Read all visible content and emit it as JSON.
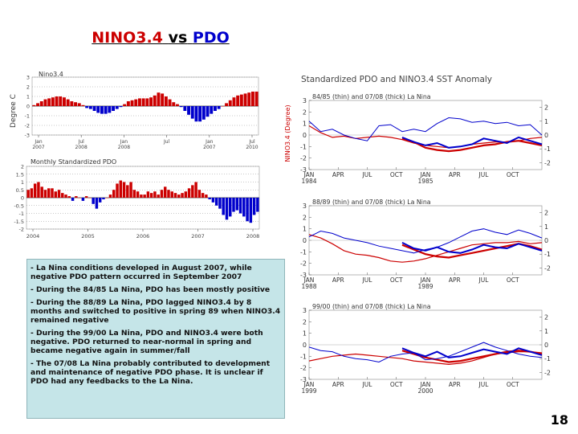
{
  "slide": {
    "title_part1": "NINO3.4",
    "title_part2": "vs",
    "title_part3": "PDO",
    "page_number": "18",
    "colors": {
      "red": "#cc0000",
      "blue": "#0000cc",
      "notes_bg": "#c5e5e8"
    },
    "notes": [
      "- La Nina conditions developed in August 2007, while negative PDO pattern occurred in September 2007",
      "- During the 84/85 La Nina, PDO has been mostly positive",
      "- During the 88/89 La Nina, PDO lagged NINO3.4 by 8 months and switched to positive in spring 89 when NINO3.4 remained negative",
      "- During the 99/00 La Nina, PDO and NINO3.4 were both negative. PDO returned to near-normal in spring and became negative again in summer/fall",
      "- The 07/08 La Nina probably contributed to development and maintenance of negative PDO phase. It is unclear if PDO had any feedbacks to the La Nina."
    ]
  },
  "chart_data": [
    {
      "type": "bar",
      "title": "Nino3.4",
      "ylabel": "Degree C",
      "ylim": [
        -3,
        3
      ],
      "yticks": [
        "3",
        "2",
        "1",
        "0",
        "-1",
        "-2",
        "-3"
      ],
      "xtick_labels": [
        {
          "top": "Jan",
          "bottom": "2007"
        },
        {
          "top": "Jul",
          "bottom": "2008"
        },
        {
          "top": "Jan",
          "bottom": "2008"
        },
        {
          "top": "Jul",
          "bottom": ""
        },
        {
          "top": "Jan",
          "bottom": "2007"
        },
        {
          "top": "Jul",
          "bottom": "2010"
        }
      ],
      "values": [
        0.1,
        0.3,
        0.5,
        0.7,
        0.8,
        0.9,
        1.0,
        1.0,
        0.9,
        0.7,
        0.5,
        0.4,
        0.3,
        0.1,
        -0.2,
        -0.3,
        -0.5,
        -0.7,
        -0.8,
        -0.8,
        -0.7,
        -0.5,
        -0.3,
        -0.1,
        0.2,
        0.5,
        0.6,
        0.7,
        0.8,
        0.8,
        0.8,
        0.9,
        1.1,
        1.4,
        1.3,
        1.0,
        0.7,
        0.4,
        0.2,
        -0.1,
        -0.5,
        -0.9,
        -1.3,
        -1.6,
        -1.6,
        -1.4,
        -1.1,
        -0.8,
        -0.5,
        -0.3,
        0.0,
        0.3,
        0.6,
        0.9,
        1.1,
        1.2,
        1.3,
        1.4,
        1.5,
        1.5
      ]
    },
    {
      "type": "bar",
      "title": "Monthly Standardized PDO",
      "ylim": [
        -2,
        2
      ],
      "yticks": [
        "2",
        "1.5",
        "1",
        "0.5",
        "0",
        "-0.5",
        "-1",
        "-1.5",
        "-2"
      ],
      "xtick_labels": [
        "2004",
        "2005",
        "2006",
        "2007",
        "2008"
      ],
      "values": [
        0.5,
        0.6,
        0.9,
        1.0,
        0.7,
        0.5,
        0.6,
        0.6,
        0.4,
        0.5,
        0.3,
        0.2,
        0.1,
        -0.2,
        0.1,
        0.0,
        -0.2,
        0.1,
        0.0,
        -0.4,
        -0.7,
        -0.3,
        -0.1,
        0.0,
        0.2,
        0.5,
        0.9,
        1.1,
        1.0,
        0.8,
        1.0,
        0.5,
        0.4,
        0.2,
        0.2,
        0.4,
        0.3,
        0.4,
        0.2,
        0.5,
        0.7,
        0.5,
        0.4,
        0.3,
        0.2,
        0.3,
        0.4,
        0.6,
        0.8,
        1.0,
        0.5,
        0.3,
        0.2,
        -0.1,
        -0.3,
        -0.5,
        -0.7,
        -1.1,
        -1.4,
        -1.2,
        -0.9,
        -0.8,
        -1.0,
        -1.2,
        -1.5,
        -1.6,
        -1.1,
        -0.9
      ]
    },
    {
      "type": "line",
      "title": "Standardized PDO and NINO3.4 SST Anomaly",
      "ylabel": "NINO3.4 (Degree)",
      "panels": [
        {
          "caption": "84/85 (thin) and 07/08 (thick) La Nina",
          "ylim": [
            -3,
            3
          ],
          "left_ticks": [
            "3",
            "2",
            "1",
            "0",
            "-1",
            "-2",
            "-3"
          ],
          "right_ticks": [
            "2",
            "1",
            "0",
            "-1",
            "-2"
          ],
          "x_labels": [
            {
              "top": "JAN",
              "bottom": "1984"
            },
            {
              "top": "APR",
              "bottom": ""
            },
            {
              "top": "JUL",
              "bottom": ""
            },
            {
              "top": "OCT",
              "bottom": ""
            },
            {
              "top": "JAN",
              "bottom": "1985"
            },
            {
              "top": "APR",
              "bottom": ""
            },
            {
              "top": "JUL",
              "bottom": ""
            },
            {
              "top": "OCT",
              "bottom": ""
            }
          ],
          "series": [
            {
              "color": "#cc0000",
              "width": 1.2,
              "values": [
                0.8,
                0.2,
                -0.2,
                -0.1,
                -0.3,
                -0.2,
                -0.1,
                -0.2,
                -0.4,
                -0.7,
                -0.9,
                -1.0,
                -1.1,
                -1.0,
                -0.8,
                -0.7,
                -0.6,
                -0.6,
                -0.5,
                -0.3,
                -0.2
              ]
            },
            {
              "color": "#cc0000",
              "width": 2.2,
              "values": [
                null,
                null,
                null,
                null,
                null,
                null,
                null,
                null,
                -0.3,
                -0.6,
                -1.1,
                -1.3,
                -1.4,
                -1.3,
                -1.1,
                -0.9,
                -0.8,
                -0.6,
                -0.5,
                -0.7,
                -0.9
              ]
            },
            {
              "color": "#0000cc",
              "width": 1.0,
              "values": [
                1.2,
                0.3,
                0.5,
                0.0,
                -0.3,
                -0.5,
                0.8,
                0.9,
                0.3,
                0.5,
                0.3,
                1.0,
                1.5,
                1.4,
                1.1,
                1.2,
                1.0,
                1.1,
                0.8,
                0.9,
                0.0
              ]
            },
            {
              "color": "#0000cc",
              "width": 2.0,
              "values": [
                null,
                null,
                null,
                null,
                null,
                null,
                null,
                null,
                -0.2,
                -0.6,
                -0.9,
                -0.7,
                -1.1,
                -1.0,
                -0.8,
                -0.3,
                -0.5,
                -0.7,
                -0.2,
                -0.5,
                -0.8
              ]
            }
          ]
        },
        {
          "caption": "88/89 (thin) and 07/08 (thick) La Nina",
          "ylim": [
            -3,
            3
          ],
          "left_ticks": [
            "3",
            "2",
            "1",
            "0",
            "-1",
            "-2",
            "-3"
          ],
          "right_ticks": [
            "2",
            "1",
            "0",
            "-1",
            "-2"
          ],
          "x_labels": [
            {
              "top": "JAN",
              "bottom": "1988"
            },
            {
              "top": "APR",
              "bottom": ""
            },
            {
              "top": "JUL",
              "bottom": ""
            },
            {
              "top": "OCT",
              "bottom": ""
            },
            {
              "top": "JAN",
              "bottom": "1989"
            },
            {
              "top": "APR",
              "bottom": ""
            },
            {
              "top": "JUL",
              "bottom": ""
            },
            {
              "top": "OCT",
              "bottom": ""
            }
          ],
          "series": [
            {
              "color": "#cc0000",
              "width": 1.2,
              "values": [
                0.5,
                0.2,
                -0.3,
                -0.9,
                -1.2,
                -1.3,
                -1.5,
                -1.8,
                -1.9,
                -1.8,
                -1.6,
                -1.3,
                -1.0,
                -0.7,
                -0.4,
                -0.3,
                -0.2,
                -0.2,
                -0.1,
                -0.3,
                -0.2
              ]
            },
            {
              "color": "#cc0000",
              "width": 2.2,
              "values": [
                null,
                null,
                null,
                null,
                null,
                null,
                null,
                null,
                -0.4,
                -0.8,
                -1.2,
                -1.4,
                -1.5,
                -1.3,
                -1.1,
                -0.9,
                -0.7,
                -0.5,
                -0.3,
                -0.5,
                -0.8
              ]
            },
            {
              "color": "#0000cc",
              "width": 1.0,
              "values": [
                0.3,
                0.8,
                0.6,
                0.2,
                0.0,
                -0.2,
                -0.5,
                -0.7,
                -0.9,
                -1.1,
                -0.8,
                -0.6,
                -0.2,
                0.3,
                0.8,
                1.0,
                0.7,
                0.5,
                0.9,
                0.6,
                0.2
              ]
            },
            {
              "color": "#0000cc",
              "width": 2.0,
              "values": [
                null,
                null,
                null,
                null,
                null,
                null,
                null,
                null,
                -0.2,
                -0.7,
                -0.9,
                -0.6,
                -1.0,
                -1.1,
                -0.8,
                -0.4,
                -0.6,
                -0.7,
                -0.3,
                -0.6,
                -0.9
              ]
            }
          ]
        },
        {
          "caption": "99/00 (thin) and 07/08 (thick) La Nina",
          "ylim": [
            -3,
            3
          ],
          "left_ticks": [
            "3",
            "2",
            "1",
            "0",
            "-1",
            "-2",
            "-3"
          ],
          "right_ticks": [
            "2",
            "1",
            "0",
            "-1",
            "-2"
          ],
          "x_labels": [
            {
              "top": "JAN",
              "bottom": "1999"
            },
            {
              "top": "APR",
              "bottom": ""
            },
            {
              "top": "JUL",
              "bottom": ""
            },
            {
              "top": "OCT",
              "bottom": ""
            },
            {
              "top": "JAN",
              "bottom": "2000"
            },
            {
              "top": "APR",
              "bottom": ""
            },
            {
              "top": "JUL",
              "bottom": ""
            },
            {
              "top": "OCT",
              "bottom": ""
            }
          ],
          "series": [
            {
              "color": "#cc0000",
              "width": 1.2,
              "values": [
                -1.4,
                -1.2,
                -1.0,
                -0.9,
                -0.8,
                -0.9,
                -1.0,
                -1.1,
                -1.2,
                -1.4,
                -1.5,
                -1.6,
                -1.7,
                -1.6,
                -1.4,
                -1.1,
                -0.8,
                -0.7,
                -0.6,
                -0.6,
                -0.7
              ]
            },
            {
              "color": "#cc0000",
              "width": 2.2,
              "values": [
                null,
                null,
                null,
                null,
                null,
                null,
                null,
                null,
                -0.5,
                -0.8,
                -1.1,
                -1.3,
                -1.5,
                -1.4,
                -1.2,
                -1.0,
                -0.8,
                -0.6,
                -0.5,
                -0.6,
                -0.8
              ]
            },
            {
              "color": "#0000cc",
              "width": 1.0,
              "values": [
                -0.2,
                -0.5,
                -0.6,
                -1.0,
                -1.2,
                -1.3,
                -1.5,
                -1.0,
                -0.8,
                -0.7,
                -1.3,
                -1.2,
                -1.0,
                -0.6,
                -0.2,
                0.2,
                -0.2,
                -0.5,
                -0.8,
                -1.0,
                -1.1
              ]
            },
            {
              "color": "#0000cc",
              "width": 2.0,
              "values": [
                null,
                null,
                null,
                null,
                null,
                null,
                null,
                null,
                -0.3,
                -0.7,
                -1.0,
                -0.6,
                -1.1,
                -1.0,
                -0.7,
                -0.4,
                -0.6,
                -0.8,
                -0.3,
                -0.6,
                -0.9
              ]
            }
          ]
        }
      ]
    }
  ]
}
